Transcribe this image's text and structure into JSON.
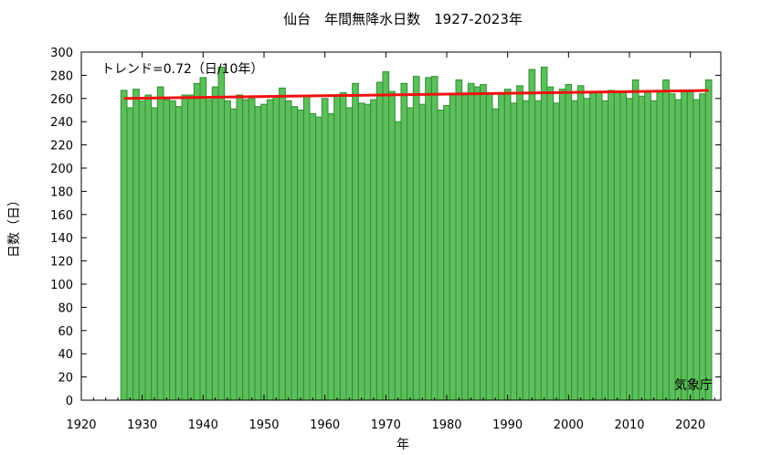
{
  "chart_data": {
    "type": "bar",
    "title": "仙台　年間無降水日数　1927-2023年",
    "xlabel": "年",
    "ylabel": "日数（日）",
    "xlim": [
      1920,
      2025
    ],
    "ylim": [
      0,
      300
    ],
    "xticks": [
      "1920",
      "1930",
      "1940",
      "1950",
      "1960",
      "1970",
      "1980",
      "1990",
      "2000",
      "2010",
      "2020"
    ],
    "yticks": [
      "0",
      "20",
      "40",
      "60",
      "80",
      "100",
      "120",
      "140",
      "160",
      "180",
      "200",
      "220",
      "240",
      "260",
      "280",
      "300"
    ],
    "grid": false,
    "x": [
      1927,
      1928,
      1929,
      1930,
      1931,
      1932,
      1933,
      1934,
      1935,
      1936,
      1937,
      1938,
      1939,
      1940,
      1941,
      1942,
      1943,
      1944,
      1945,
      1946,
      1947,
      1948,
      1949,
      1950,
      1951,
      1952,
      1953,
      1954,
      1955,
      1956,
      1957,
      1958,
      1959,
      1960,
      1961,
      1962,
      1963,
      1964,
      1965,
      1966,
      1967,
      1968,
      1969,
      1970,
      1971,
      1972,
      1973,
      1974,
      1975,
      1976,
      1977,
      1978,
      1979,
      1980,
      1981,
      1982,
      1983,
      1984,
      1985,
      1986,
      1987,
      1988,
      1989,
      1990,
      1991,
      1992,
      1993,
      1994,
      1995,
      1996,
      1997,
      1998,
      1999,
      2000,
      2001,
      2002,
      2003,
      2004,
      2005,
      2006,
      2007,
      2008,
      2009,
      2010,
      2011,
      2012,
      2013,
      2014,
      2015,
      2016,
      2017,
      2018,
      2019,
      2020,
      2021,
      2022,
      2023
    ],
    "series": [
      {
        "values": [
          267,
          252,
          268,
          258,
          263,
          252,
          270,
          259,
          258,
          253,
          263,
          263,
          273,
          278,
          259,
          270,
          287,
          258,
          251,
          263,
          259,
          260,
          253,
          255,
          259,
          262,
          269,
          258,
          253,
          250,
          262,
          247,
          244,
          260,
          247,
          263,
          265,
          252,
          273,
          256,
          255,
          259,
          274,
          283,
          266,
          240,
          273,
          252,
          279,
          255,
          278,
          279,
          250,
          254,
          264,
          276,
          264,
          273,
          270,
          272,
          264,
          251,
          264,
          268,
          256,
          271,
          258,
          285,
          258,
          287,
          270,
          256,
          268,
          272,
          258,
          271,
          260,
          266,
          265,
          258,
          267,
          266,
          266,
          260,
          276,
          262,
          266,
          258,
          266,
          276,
          264,
          259,
          266,
          266,
          259,
          264,
          276
        ],
        "color": "#5cbf5c",
        "edge_color": "#2f8f2f"
      }
    ],
    "trend": {
      "label": "トレンド=0.72（日/10年）",
      "color": "#ee1111",
      "start": [
        1927,
        260.0
      ],
      "end": [
        2023,
        266.9
      ]
    },
    "credit": "気象庁"
  }
}
